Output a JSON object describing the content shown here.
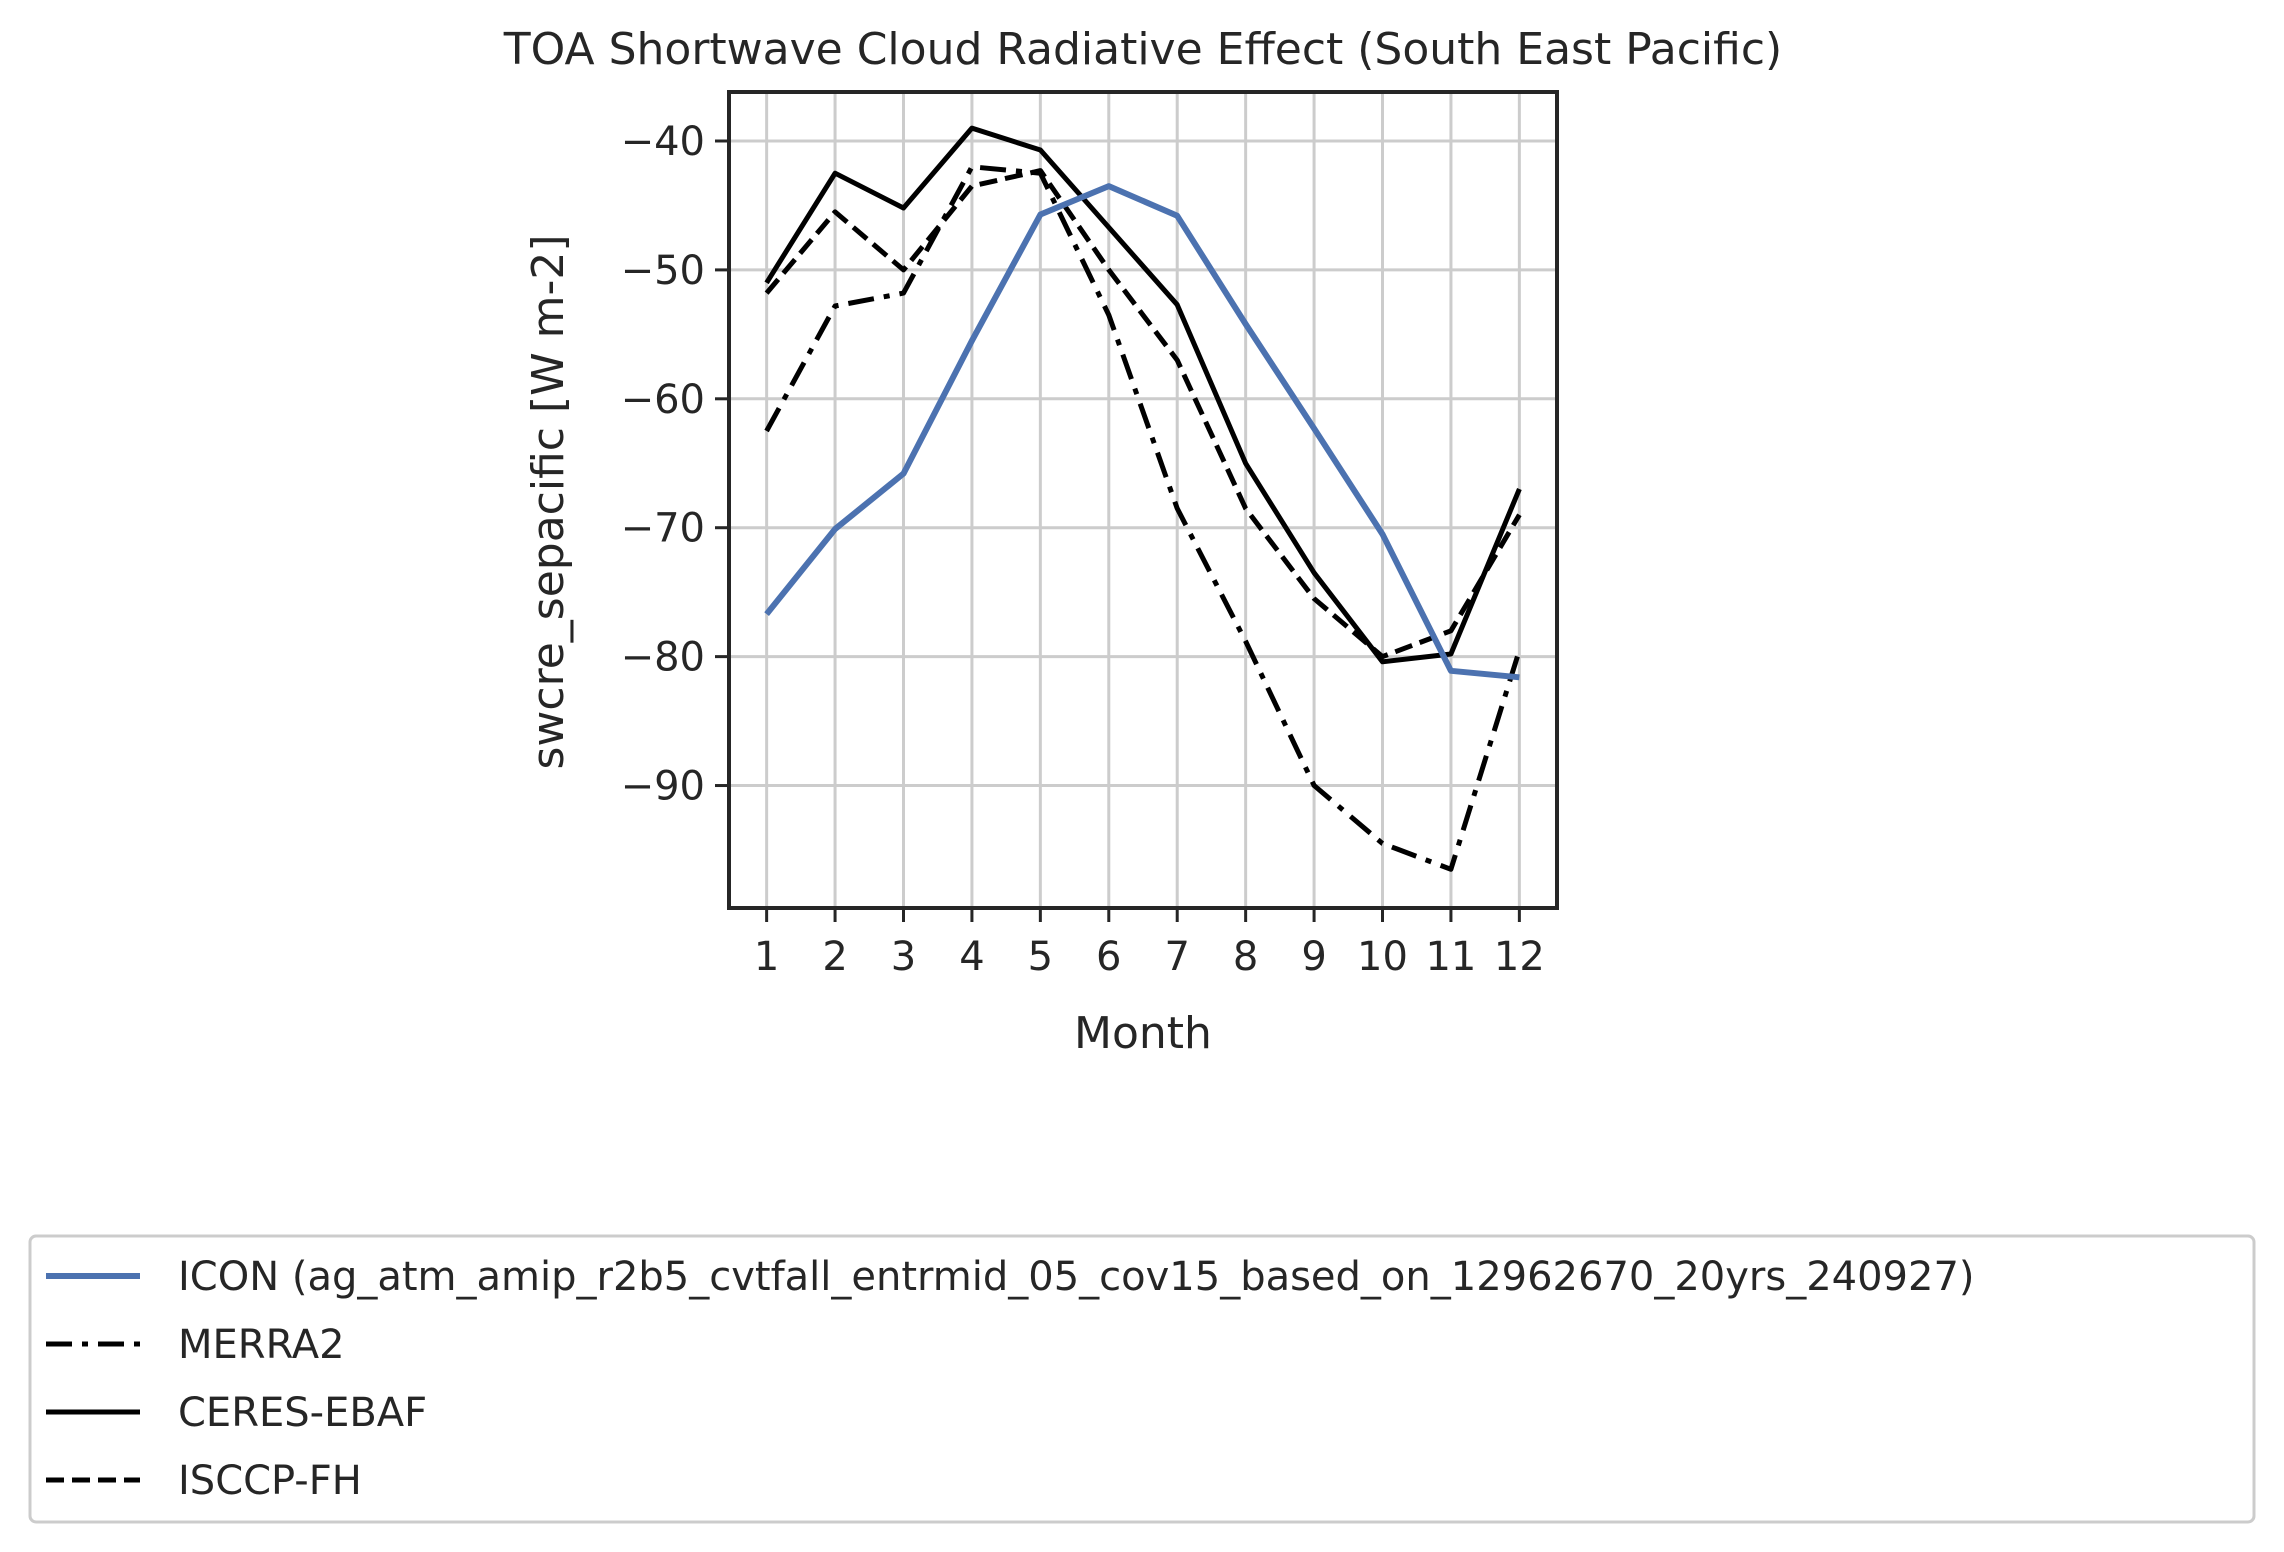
{
  "chart_data": {
    "type": "line",
    "title": "TOA Shortwave Cloud Radiative Effect (South East Pacific)",
    "xlabel": "Month",
    "ylabel": "swcre_sepacific [W m-2]",
    "x": [
      1,
      2,
      3,
      4,
      5,
      6,
      7,
      8,
      9,
      10,
      11,
      12
    ],
    "xlim": [
      0.45,
      12.55
    ],
    "ylim": [
      -99.5,
      -36.2
    ],
    "yticks": [
      -90,
      -80,
      -70,
      -60,
      -50,
      -40
    ],
    "grid": true,
    "legend_position": "below",
    "series": [
      {
        "name": "ICON (ag_atm_amip_r2b5_cvtfall_entrmid_05_cov15_based_on_12962670_20yrs_240927)",
        "color": "#4c72b0",
        "style": "solid",
        "values": [
          -76.7,
          -70.1,
          -65.8,
          -55.5,
          -45.7,
          -43.5,
          -45.8,
          -54.2,
          -62.3,
          -70.5,
          -81.1,
          -81.6
        ]
      },
      {
        "name": "MERRA2",
        "color": "#000000",
        "style": "dashdot",
        "values": [
          -62.5,
          -52.8,
          -51.8,
          -42.0,
          -42.5,
          -53.5,
          -68.5,
          -78.8,
          -90.0,
          -94.5,
          -96.5,
          -79.5
        ]
      },
      {
        "name": "CERES-EBAF",
        "color": "#000000",
        "style": "solid",
        "values": [
          -51.0,
          -42.5,
          -45.2,
          -39.0,
          -40.7,
          -46.7,
          -52.7,
          -65.0,
          -73.5,
          -80.4,
          -79.8,
          -67.0
        ]
      },
      {
        "name": "ISCCP-FH",
        "color": "#000000",
        "style": "dashed",
        "values": [
          -51.8,
          -45.5,
          -50.0,
          -43.5,
          -42.3,
          -50.0,
          -57.0,
          -68.5,
          -75.5,
          -80.0,
          -78.0,
          -69.0
        ]
      }
    ]
  }
}
